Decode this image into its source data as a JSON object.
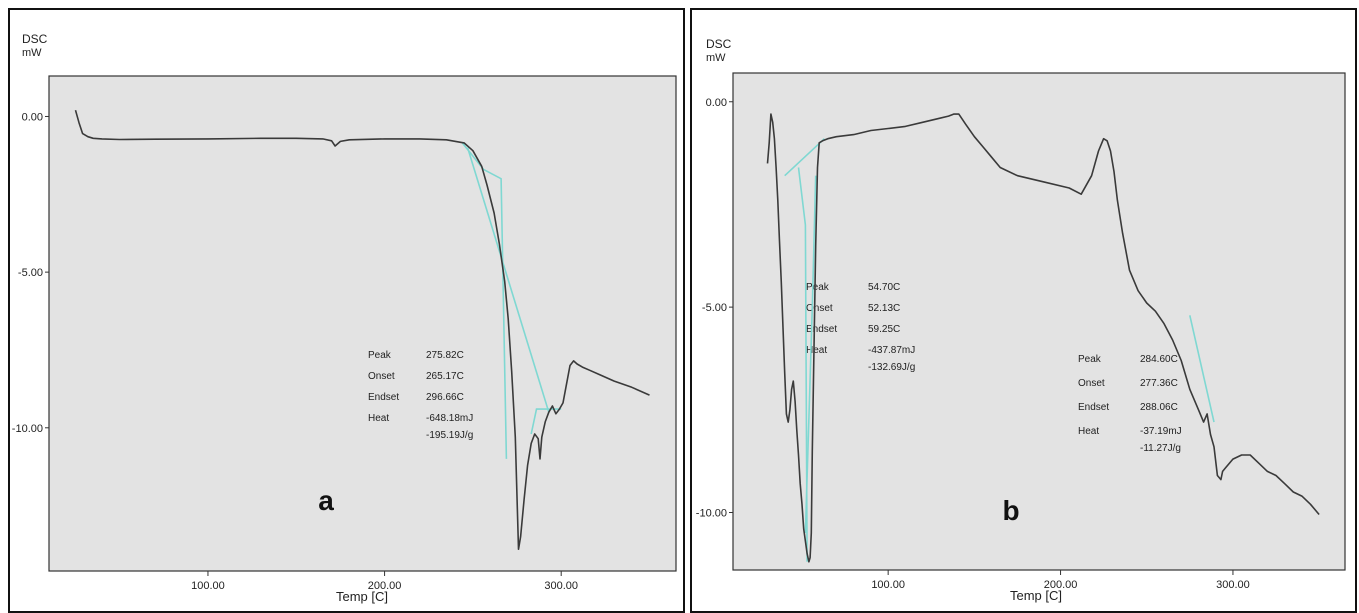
{
  "panels": [
    {
      "panel_label": "a",
      "y_title": "DSC",
      "y_unit": "mW",
      "x_title": "Temp [C]",
      "annotation": {
        "keys": [
          "Peak",
          "Onset",
          "Endset",
          "Heat"
        ],
        "vals": [
          "275.82C",
          "265.17C",
          "296.66C",
          "-648.18mJ"
        ],
        "extra": "-195.19J/g"
      }
    },
    {
      "panel_label": "b",
      "y_title": "DSC",
      "y_unit": "mW",
      "x_title": "Temp [C]",
      "annotations": [
        {
          "keys": [
            "Peak",
            "Onset",
            "Endset",
            "Heat"
          ],
          "vals": [
            "54.70C",
            "52.13C",
            "59.25C",
            "-437.87mJ"
          ],
          "extra": "-132.69J/g"
        },
        {
          "keys": [
            "Peak",
            "Onset",
            "Endset",
            "Heat"
          ],
          "vals": [
            "284.60C",
            "277.36C",
            "288.06C",
            "-37.19mJ"
          ],
          "extra": "-11.27J/g"
        }
      ]
    }
  ],
  "chart_data": [
    {
      "type": "line",
      "xlabel": "Temp [C]",
      "ylabel": "DSC mW",
      "xlim": [
        10,
        365
      ],
      "ylim": [
        -14.6,
        1.3
      ],
      "xticks": [
        100,
        200,
        300
      ],
      "xtick_labels": [
        "100.00",
        "200.00",
        "300.00"
      ],
      "yticks": [
        0,
        -5,
        -10
      ],
      "ytick_labels": [
        "0.00",
        "-5.00",
        "-10.00"
      ],
      "grid": false,
      "colors": {
        "curve": "#3a3a3a",
        "fit": "#7fd8d2",
        "background": "#e3e3e3"
      },
      "series": [
        {
          "x": [
            25,
            27,
            29,
            32,
            35,
            40,
            50,
            70,
            100,
            130,
            150,
            165,
            170,
            172,
            175,
            180,
            200,
            220,
            235,
            245,
            250,
            255,
            258,
            262,
            265,
            268,
            270,
            272,
            274,
            275.8,
            277,
            279,
            281,
            283,
            285,
            287,
            288,
            289,
            291,
            293,
            295,
            297,
            299,
            301,
            303,
            305,
            307,
            309,
            312,
            316,
            322,
            330,
            340,
            350
          ],
          "y": [
            0.2,
            -0.2,
            -0.55,
            -0.65,
            -0.7,
            -0.72,
            -0.74,
            -0.73,
            -0.72,
            -0.7,
            -0.7,
            -0.72,
            -0.78,
            -0.95,
            -0.8,
            -0.75,
            -0.72,
            -0.72,
            -0.75,
            -0.85,
            -1.1,
            -1.6,
            -2.2,
            -3.1,
            -4.1,
            -5.3,
            -6.5,
            -8.2,
            -10.3,
            -13.9,
            -13.5,
            -12.3,
            -11.2,
            -10.5,
            -10.2,
            -10.35,
            -11.0,
            -10.3,
            -9.8,
            -9.5,
            -9.3,
            -9.55,
            -9.4,
            -9.2,
            -8.6,
            -8.0,
            -7.85,
            -7.95,
            -8.05,
            -8.15,
            -8.3,
            -8.5,
            -8.7,
            -8.95
          ]
        }
      ],
      "fit_segments": [
        [
          [
            244,
            -0.85
          ],
          [
            256,
            -1.7
          ],
          [
            266,
            -2.0
          ],
          [
            269,
            -11.0
          ]
        ],
        [
          [
            247,
            -1.0
          ],
          [
            293,
            -9.5
          ]
        ],
        [
          [
            283,
            -10.2
          ],
          [
            286,
            -9.4
          ],
          [
            300,
            -9.4
          ]
        ]
      ]
    },
    {
      "type": "line",
      "xlabel": "Temp [C]",
      "ylabel": "DSC mW",
      "xlim": [
        10,
        365
      ],
      "ylim": [
        -11.4,
        0.7
      ],
      "xticks": [
        100,
        200,
        300
      ],
      "xtick_labels": [
        "100.00",
        "200.00",
        "300.00"
      ],
      "yticks": [
        0,
        -5,
        -10
      ],
      "ytick_labels": [
        "0.00",
        "-5.00",
        "-10.00"
      ],
      "grid": false,
      "colors": {
        "curve": "#3a3a3a",
        "fit": "#7fd8d2",
        "background": "#e3e3e3"
      },
      "series": [
        {
          "x": [
            30,
            31,
            32,
            33,
            34,
            35,
            36,
            37,
            38,
            39,
            40,
            41,
            42,
            43,
            44,
            45,
            46,
            47,
            48,
            49,
            50,
            51,
            52,
            53,
            54,
            54.7,
            55.4,
            56,
            57,
            58,
            59,
            60,
            62,
            65,
            70,
            80,
            90,
            100,
            110,
            120,
            130,
            135,
            138,
            141,
            145,
            150,
            155,
            160,
            165,
            175,
            190,
            205,
            212,
            218,
            222,
            225,
            227,
            229,
            231,
            233,
            236,
            240,
            245,
            250,
            255,
            260,
            265,
            270,
            275,
            280,
            283,
            285,
            287,
            289,
            291,
            293,
            294,
            296,
            300,
            305,
            310,
            315,
            320,
            325,
            330,
            335,
            340,
            345,
            350
          ],
          "y": [
            -1.5,
            -1.0,
            -0.3,
            -0.5,
            -0.9,
            -1.6,
            -2.4,
            -3.4,
            -4.4,
            -5.5,
            -6.6,
            -7.6,
            -7.8,
            -7.5,
            -7.0,
            -6.8,
            -7.3,
            -8.0,
            -8.6,
            -9.3,
            -9.8,
            -10.4,
            -10.7,
            -11.0,
            -11.2,
            -11.1,
            -10.5,
            -8.5,
            -6.0,
            -3.5,
            -1.6,
            -1.0,
            -0.95,
            -0.9,
            -0.85,
            -0.8,
            -0.7,
            -0.65,
            -0.6,
            -0.5,
            -0.4,
            -0.35,
            -0.3,
            -0.3,
            -0.55,
            -0.85,
            -1.1,
            -1.35,
            -1.6,
            -1.8,
            -1.95,
            -2.1,
            -2.25,
            -1.8,
            -1.2,
            -0.9,
            -0.95,
            -1.2,
            -1.7,
            -2.4,
            -3.2,
            -4.1,
            -4.6,
            -4.9,
            -5.1,
            -5.4,
            -5.8,
            -6.3,
            -7.0,
            -7.5,
            -7.8,
            -7.6,
            -8.1,
            -8.4,
            -9.1,
            -9.2,
            -9.0,
            -8.9,
            -8.7,
            -8.6,
            -8.6,
            -8.8,
            -9.0,
            -9.1,
            -9.3,
            -9.5,
            -9.6,
            -9.8,
            -10.05
          ]
        }
      ],
      "fit_segments": [
        [
          [
            40,
            -1.8
          ],
          [
            63,
            -0.9
          ]
        ],
        [
          [
            48,
            -1.6
          ],
          [
            52,
            -3.0
          ],
          [
            53,
            -11.2
          ]
        ],
        [
          [
            52,
            -10.5
          ],
          [
            56,
            -5.0
          ],
          [
            58,
            -1.8
          ]
        ],
        [
          [
            275,
            -5.2
          ],
          [
            289,
            -7.8
          ]
        ]
      ]
    }
  ]
}
